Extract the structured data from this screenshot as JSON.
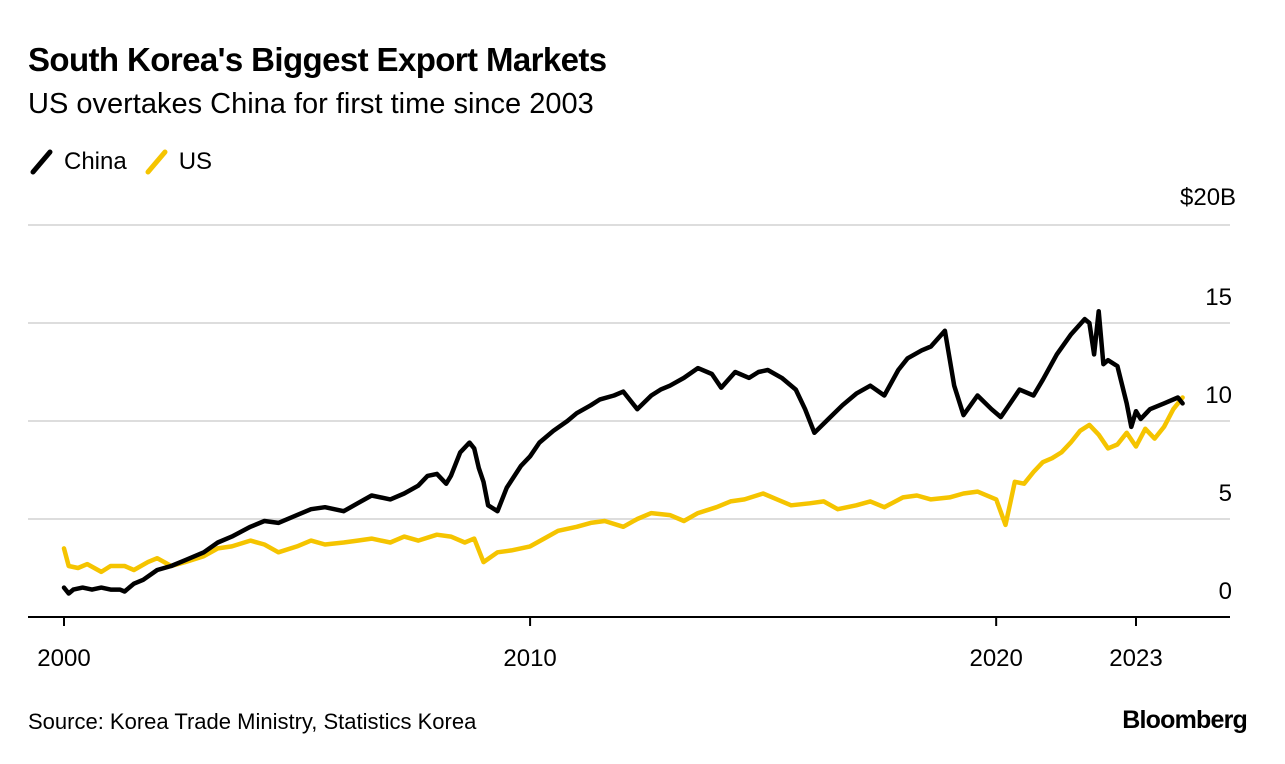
{
  "header": {
    "title": "South Korea's Biggest Export Markets",
    "subtitle": "US overtakes China for first time since 2003"
  },
  "footer": {
    "source": "Source: Korea Trade Ministry, Statistics Korea",
    "logo": "Bloomberg"
  },
  "colors": {
    "china": "#000000",
    "us": "#F5C400",
    "grid": "#DDDDDD",
    "axis": "#000000"
  },
  "chart_data": {
    "type": "line",
    "title": "South Korea's Biggest Export Markets",
    "subtitle": "US overtakes China for first time since 2003",
    "xlabel": "",
    "ylabel": "",
    "y_unit_label": "$20B",
    "xlim": [
      2000,
      2025.2
    ],
    "ylim": [
      0,
      20
    ],
    "y_ticks": [
      0,
      5,
      10,
      15,
      20
    ],
    "y_tick_labels": [
      "0",
      "5",
      "10",
      "15",
      "$20B"
    ],
    "x_ticks": [
      2000,
      2010,
      2020,
      2023
    ],
    "x_tick_labels": [
      "2000",
      "2010",
      "2020",
      "2023"
    ],
    "grid": true,
    "legend": "top-left",
    "series": [
      {
        "name": "China",
        "color": "#000000",
        "x": [
          2000.0,
          2000.1,
          2000.2,
          2000.4,
          2000.6,
          2000.8,
          2001.0,
          2001.2,
          2001.3,
          2001.5,
          2001.7,
          2002.0,
          2002.3,
          2002.6,
          2003.0,
          2003.3,
          2003.6,
          2004.0,
          2004.3,
          2004.6,
          2005.0,
          2005.3,
          2005.6,
          2006.0,
          2006.3,
          2006.6,
          2007.0,
          2007.3,
          2007.6,
          2007.8,
          2008.0,
          2008.2,
          2008.3,
          2008.5,
          2008.7,
          2008.8,
          2008.9,
          2009.0,
          2009.1,
          2009.3,
          2009.5,
          2009.8,
          2010.0,
          2010.2,
          2010.5,
          2010.8,
          2011.0,
          2011.3,
          2011.5,
          2011.8,
          2012.0,
          2012.3,
          2012.6,
          2012.8,
          2013.0,
          2013.3,
          2013.6,
          2013.9,
          2014.1,
          2014.4,
          2014.7,
          2014.9,
          2015.1,
          2015.4,
          2015.7,
          2015.9,
          2016.1,
          2016.4,
          2016.7,
          2017.0,
          2017.3,
          2017.6,
          2017.9,
          2018.1,
          2018.4,
          2018.6,
          2018.9,
          2019.1,
          2019.3,
          2019.6,
          2019.9,
          2020.1,
          2020.3,
          2020.5,
          2020.8,
          2021.0,
          2021.3,
          2021.6,
          2021.9,
          2022.0,
          2022.1,
          2022.2,
          2022.3,
          2022.4,
          2022.6,
          2022.8,
          2022.9,
          2023.0,
          2023.1,
          2023.3,
          2023.6,
          2023.9,
          2024.0
        ],
        "values": [
          1.5,
          1.2,
          1.4,
          1.5,
          1.4,
          1.5,
          1.4,
          1.4,
          1.3,
          1.7,
          1.9,
          2.4,
          2.6,
          2.9,
          3.3,
          3.8,
          4.1,
          4.6,
          4.9,
          4.8,
          5.2,
          5.5,
          5.6,
          5.4,
          5.8,
          6.2,
          6.0,
          6.3,
          6.7,
          7.2,
          7.3,
          6.8,
          7.2,
          8.4,
          8.9,
          8.6,
          7.6,
          6.9,
          5.7,
          5.4,
          6.6,
          7.7,
          8.2,
          8.9,
          9.5,
          10.0,
          10.4,
          10.8,
          11.1,
          11.3,
          11.5,
          10.6,
          11.3,
          11.6,
          11.8,
          12.2,
          12.7,
          12.4,
          11.7,
          12.5,
          12.2,
          12.5,
          12.6,
          12.2,
          11.6,
          10.6,
          9.4,
          10.1,
          10.8,
          11.4,
          11.8,
          11.3,
          12.6,
          13.2,
          13.6,
          13.8,
          14.6,
          11.8,
          10.3,
          11.3,
          10.6,
          10.2,
          10.9,
          11.6,
          11.3,
          12.1,
          13.4,
          14.4,
          15.2,
          15.0,
          13.4,
          15.6,
          12.9,
          13.1,
          12.8,
          10.9,
          9.7,
          10.5,
          10.1,
          10.6,
          10.9,
          11.2,
          10.9
        ]
      },
      {
        "name": "US",
        "color": "#F5C400",
        "x": [
          2000.0,
          2000.1,
          2000.3,
          2000.5,
          2000.8,
          2001.0,
          2001.3,
          2001.5,
          2001.8,
          2002.0,
          2002.3,
          2002.6,
          2003.0,
          2003.3,
          2003.6,
          2004.0,
          2004.3,
          2004.6,
          2005.0,
          2005.3,
          2005.6,
          2006.0,
          2006.3,
          2006.6,
          2007.0,
          2007.3,
          2007.6,
          2008.0,
          2008.3,
          2008.6,
          2008.8,
          2009.0,
          2009.3,
          2009.6,
          2010.0,
          2010.3,
          2010.6,
          2011.0,
          2011.3,
          2011.6,
          2012.0,
          2012.3,
          2012.6,
          2013.0,
          2013.3,
          2013.6,
          2014.0,
          2014.3,
          2014.6,
          2015.0,
          2015.3,
          2015.6,
          2016.0,
          2016.3,
          2016.6,
          2017.0,
          2017.3,
          2017.6,
          2018.0,
          2018.3,
          2018.6,
          2019.0,
          2019.3,
          2019.6,
          2020.0,
          2020.2,
          2020.3,
          2020.4,
          2020.6,
          2020.8,
          2021.0,
          2021.2,
          2021.4,
          2021.6,
          2021.8,
          2022.0,
          2022.2,
          2022.4,
          2022.6,
          2022.8,
          2023.0,
          2023.2,
          2023.4,
          2023.6,
          2023.8,
          2024.0
        ],
        "values": [
          3.5,
          2.6,
          2.5,
          2.7,
          2.3,
          2.6,
          2.6,
          2.4,
          2.8,
          3.0,
          2.6,
          2.8,
          3.1,
          3.5,
          3.6,
          3.9,
          3.7,
          3.3,
          3.6,
          3.9,
          3.7,
          3.8,
          3.9,
          4.0,
          3.8,
          4.1,
          3.9,
          4.2,
          4.1,
          3.8,
          4.0,
          2.8,
          3.3,
          3.4,
          3.6,
          4.0,
          4.4,
          4.6,
          4.8,
          4.9,
          4.6,
          5.0,
          5.3,
          5.2,
          4.9,
          5.3,
          5.6,
          5.9,
          6.0,
          6.3,
          6.0,
          5.7,
          5.8,
          5.9,
          5.5,
          5.7,
          5.9,
          5.6,
          6.1,
          6.2,
          6.0,
          6.1,
          6.3,
          6.4,
          6.0,
          4.7,
          5.8,
          6.9,
          6.8,
          7.4,
          7.9,
          8.1,
          8.4,
          8.9,
          9.5,
          9.8,
          9.3,
          8.6,
          8.8,
          9.4,
          8.7,
          9.6,
          9.1,
          9.7,
          10.6,
          11.2
        ]
      }
    ]
  }
}
